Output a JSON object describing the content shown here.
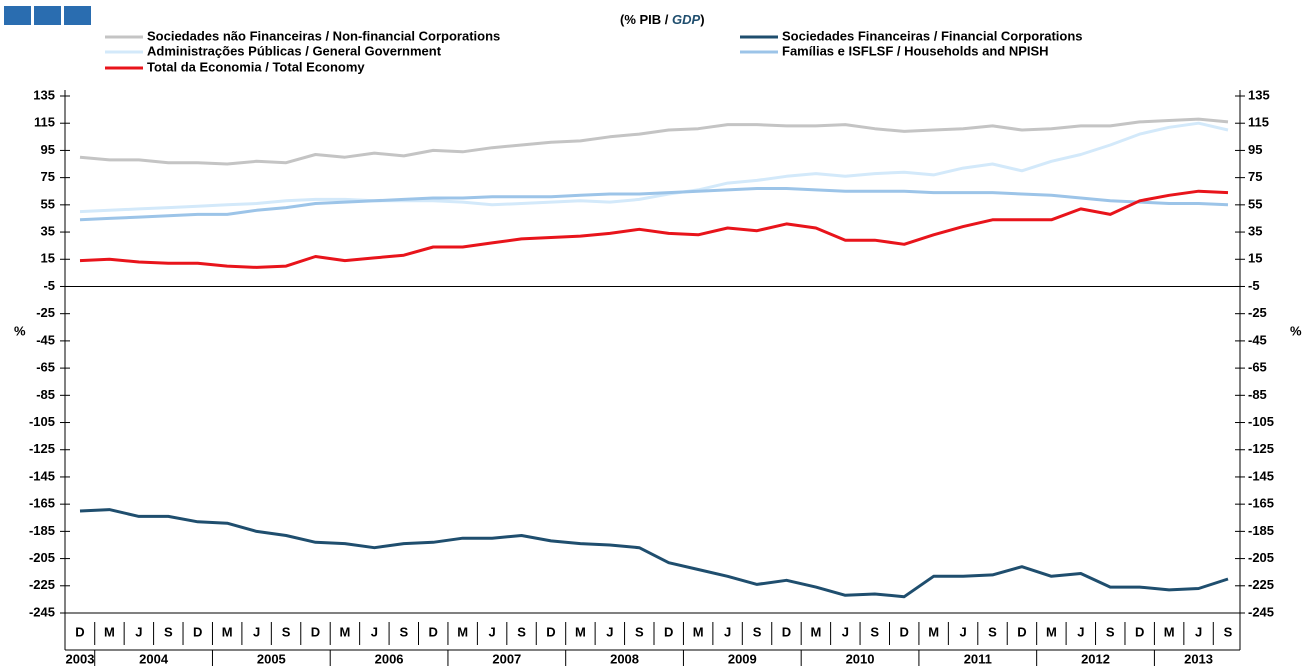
{
  "chart_data": {
    "type": "line",
    "subtitle_parts": [
      "(% PIB / ",
      "GDP",
      ")"
    ],
    "y_label": "%",
    "categories": [
      "D",
      "M",
      "J",
      "S",
      "D",
      "M",
      "J",
      "S",
      "D",
      "M",
      "J",
      "S",
      "D",
      "M",
      "J",
      "S",
      "D",
      "M",
      "J",
      "S",
      "D",
      "M",
      "J",
      "S",
      "D",
      "M",
      "J",
      "S",
      "D",
      "M",
      "J",
      "S",
      "D",
      "M",
      "J",
      "S",
      "D",
      "M",
      "J",
      "S"
    ],
    "years": [
      "2003",
      "2004",
      "2005",
      "2006",
      "2007",
      "2008",
      "2009",
      "2010",
      "2011",
      "2012",
      "2013"
    ],
    "series": [
      {
        "name": "Sociedades não Financeiras / Non-financial Corporations",
        "color": "#c4c4c4",
        "values": [
          90,
          88,
          88,
          86,
          86,
          85,
          87,
          86,
          92,
          90,
          93,
          91,
          95,
          94,
          97,
          99,
          101,
          102,
          105,
          107,
          110,
          111,
          114,
          114,
          113,
          113,
          114,
          111,
          109,
          110,
          111,
          113,
          110,
          111,
          113,
          113,
          116,
          117,
          118,
          116
        ]
      },
      {
        "name": "Sociedades Financeiras / Financial Corporations",
        "color": "#1f4e6e",
        "values": [
          -170,
          -169,
          -174,
          -174,
          -178,
          -179,
          -185,
          -188,
          -193,
          -194,
          -197,
          -194,
          -193,
          -190,
          -190,
          -188,
          -192,
          -194,
          -195,
          -197,
          -208,
          -213,
          -218,
          -224,
          -221,
          -226,
          -232,
          -231,
          -233,
          -218,
          -218,
          -217,
          -211,
          -218,
          -216,
          -226,
          -226,
          -228,
          -227,
          -220
        ]
      },
      {
        "name": "Administrações Públicas / General Government",
        "color": "#d3e9fa",
        "values": [
          50,
          51,
          52,
          53,
          54,
          55,
          56,
          58,
          59,
          59,
          58,
          58,
          58,
          57,
          55,
          56,
          57,
          58,
          57,
          59,
          63,
          66,
          71,
          73,
          76,
          78,
          76,
          78,
          79,
          77,
          82,
          85,
          80,
          87,
          92,
          99,
          107,
          112,
          115,
          110
        ]
      },
      {
        "name": "Famílias e ISFLSF / Households and NPISH",
        "color": "#9cc4e8",
        "values": [
          44,
          45,
          46,
          47,
          48,
          48,
          51,
          53,
          56,
          57,
          58,
          59,
          60,
          60,
          61,
          61,
          61,
          62,
          63,
          63,
          64,
          65,
          66,
          67,
          67,
          66,
          65,
          65,
          65,
          64,
          64,
          64,
          63,
          62,
          60,
          58,
          57,
          56,
          56,
          55
        ]
      },
      {
        "name": "Total da Economia / Total Economy",
        "color": "#e8141b",
        "values": [
          14,
          15,
          13,
          12,
          12,
          10,
          9,
          10,
          17,
          14,
          16,
          18,
          24,
          24,
          27,
          30,
          31,
          32,
          34,
          37,
          34,
          33,
          38,
          36,
          41,
          38,
          29,
          29,
          26,
          33,
          39,
          44,
          44,
          44,
          52,
          48,
          58,
          62,
          65,
          64
        ]
      }
    ],
    "ylim": [
      -245,
      135
    ],
    "yticks": [
      135,
      115,
      95,
      75,
      55,
      35,
      15,
      -5,
      -25,
      -45,
      -65,
      -85,
      -105,
      -125,
      -145,
      -165,
      -185,
      -205,
      -225,
      -245
    ],
    "baseline": -5
  }
}
